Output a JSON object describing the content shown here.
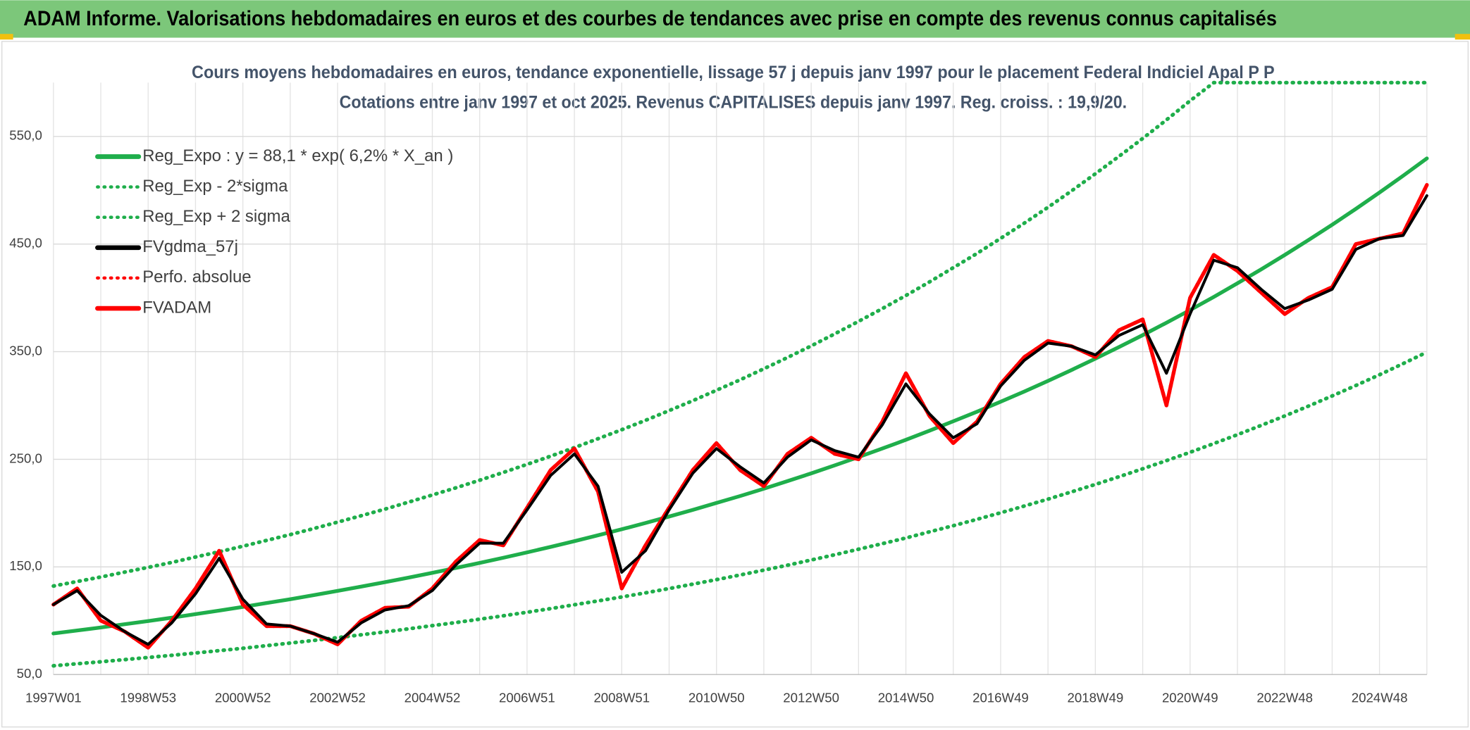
{
  "header": {
    "title": "ADAM Informe. Valorisations hebdomadaires en euros et des courbes de tendances avec prise en compte des revenus connus capitalisés"
  },
  "chart_data": {
    "type": "line",
    "title": "Cours moyens hebdomadaires en euros, tendance exponentielle, lissage 57 j depuis janv 1997 pour le placement Federal Indiciel Apal P P",
    "subtitle": "Cotations entre janv 1997 et oct 2025. Revenus CAPITALISES depuis janv 1997. Reg. croiss. : 19,9/20.",
    "categories": [
      "1997W01",
      null,
      null,
      null,
      "1998W53",
      null,
      null,
      null,
      "2000W52",
      null,
      null,
      null,
      "2002W52",
      null,
      null,
      null,
      "2004W52",
      null,
      null,
      null,
      "2006W51",
      null,
      null,
      null,
      "2008W51",
      null,
      null,
      null,
      "2010W50",
      null,
      null,
      null,
      "2012W50",
      null,
      null,
      null,
      "2014W50",
      null,
      null,
      null,
      "2016W49",
      null,
      null,
      null,
      "2018W49",
      null,
      null,
      null,
      "2020W49",
      null,
      null,
      null,
      "2022W48",
      null,
      null,
      null,
      "2024W48",
      null,
      null
    ],
    "ylim": [
      50,
      600
    ],
    "yticks": [
      {
        "value": 50,
        "label": "50,0"
      },
      {
        "value": 150,
        "label": "150,0"
      },
      {
        "value": 250,
        "label": "250,0"
      },
      {
        "value": 350,
        "label": "350,0"
      },
      {
        "value": 450,
        "label": "450,0"
      },
      {
        "value": 550,
        "label": "550,0"
      }
    ],
    "grid": true,
    "legend": "top-left",
    "series": [
      {
        "name": "Reg_Expo : y = 88,1 * exp( 6,2% *  X_an )",
        "color": "#1fae4b",
        "style": "solid",
        "values": [
          88.1,
          90.9,
          93.7,
          96.7,
          99.7,
          102.8,
          106.1,
          109.4,
          112.8,
          116.4,
          120.0,
          123.8,
          127.7,
          131.7,
          135.8,
          140.1,
          144.5,
          149.0,
          153.7,
          158.5,
          163.5,
          168.6,
          173.9,
          179.4,
          185.0,
          190.8,
          196.8,
          203.0,
          209.4,
          215.9,
          222.7,
          229.7,
          236.9,
          244.4,
          252.1,
          260.0,
          268.1,
          276.6,
          285.3,
          294.2,
          303.5,
          313.0,
          322.8,
          333.0,
          343.5,
          354.3,
          365.4,
          376.9,
          388.7,
          400.9,
          413.5,
          426.5,
          439.9,
          453.7,
          468.0,
          482.7,
          497.9,
          513.5,
          529.6
        ]
      },
      {
        "name": "Reg_Exp - 2*sigma",
        "color": "#1fae4b",
        "style": "dotted",
        "values": [
          58.1,
          60.0,
          61.8,
          63.8,
          65.8,
          67.8,
          70.0,
          72.2,
          74.4,
          76.8,
          79.2,
          81.7,
          84.3,
          86.9,
          89.6,
          92.5,
          95.4,
          98.3,
          101.4,
          104.6,
          107.9,
          111.3,
          114.8,
          118.4,
          122.1,
          125.9,
          129.9,
          134.0,
          138.2,
          142.5,
          147.0,
          151.6,
          156.4,
          161.3,
          166.4,
          171.6,
          176.9,
          182.6,
          188.3,
          194.2,
          200.3,
          206.6,
          213.0,
          219.8,
          226.7,
          233.8,
          241.2,
          248.8,
          256.5,
          264.6,
          272.9,
          281.5,
          290.3,
          299.4,
          308.9,
          318.6,
          328.6,
          338.9,
          349.5
        ]
      },
      {
        "name": "Reg_Exp + 2 sigma",
        "color": "#1fae4b",
        "style": "dotted",
        "values": [
          132.2,
          136.4,
          140.6,
          145.1,
          149.6,
          154.2,
          159.2,
          164.1,
          169.2,
          174.6,
          180.0,
          185.7,
          191.6,
          197.6,
          203.7,
          210.2,
          216.8,
          223.5,
          230.6,
          237.8,
          245.3,
          252.9,
          260.9,
          269.1,
          277.5,
          286.2,
          295.2,
          304.5,
          314.1,
          323.9,
          334.1,
          344.6,
          355.4,
          366.6,
          378.2,
          390.0,
          402.2,
          414.9,
          428.0,
          441.3,
          455.3,
          469.5,
          484.2,
          499.5,
          515.3,
          531.5,
          548.1,
          565.4,
          583.1,
          600,
          600,
          600,
          600,
          600,
          600,
          600,
          600,
          600,
          600
        ]
      },
      {
        "name": "FVgdma_57j",
        "color": "#000000",
        "style": "solid",
        "values": [
          115,
          128,
          105,
          90,
          78,
          98,
          125,
          158,
          120,
          97,
          95,
          88,
          80,
          98,
          110,
          114,
          128,
          152,
          172,
          172,
          203,
          235,
          255,
          225,
          145,
          165,
          203,
          237,
          260,
          243,
          228,
          252,
          268,
          258,
          252,
          282,
          320,
          292,
          270,
          283,
          318,
          342,
          358,
          355,
          347,
          365,
          375,
          330,
          385,
          435,
          428,
          408,
          390,
          398,
          408,
          445,
          455,
          458,
          495
        ]
      },
      {
        "name": "Perfo. absolue",
        "color": "#ff0000",
        "style": "dotted",
        "values": [
          115,
          130,
          100,
          90,
          75,
          100,
          130,
          165,
          115,
          95,
          95,
          88,
          78,
          100,
          112,
          113,
          130,
          155,
          175,
          170,
          205,
          240,
          260,
          220,
          130,
          170,
          205,
          240,
          265,
          240,
          225,
          255,
          270,
          255,
          250,
          285,
          330,
          290,
          265,
          285,
          320,
          345,
          360,
          355,
          345,
          370,
          380,
          300,
          400,
          440,
          425,
          405,
          385,
          400,
          410,
          450,
          455,
          460,
          505
        ]
      },
      {
        "name": "FVADAM",
        "color": "#ff0000",
        "style": "solid",
        "values": [
          115,
          130,
          100,
          90,
          75,
          100,
          130,
          165,
          115,
          95,
          95,
          88,
          78,
          100,
          112,
          113,
          130,
          155,
          175,
          170,
          205,
          240,
          260,
          220,
          130,
          170,
          205,
          240,
          265,
          240,
          225,
          255,
          270,
          255,
          250,
          285,
          330,
          290,
          265,
          285,
          320,
          345,
          360,
          355,
          345,
          370,
          380,
          300,
          400,
          440,
          425,
          405,
          385,
          400,
          410,
          450,
          455,
          460,
          505
        ]
      }
    ]
  }
}
